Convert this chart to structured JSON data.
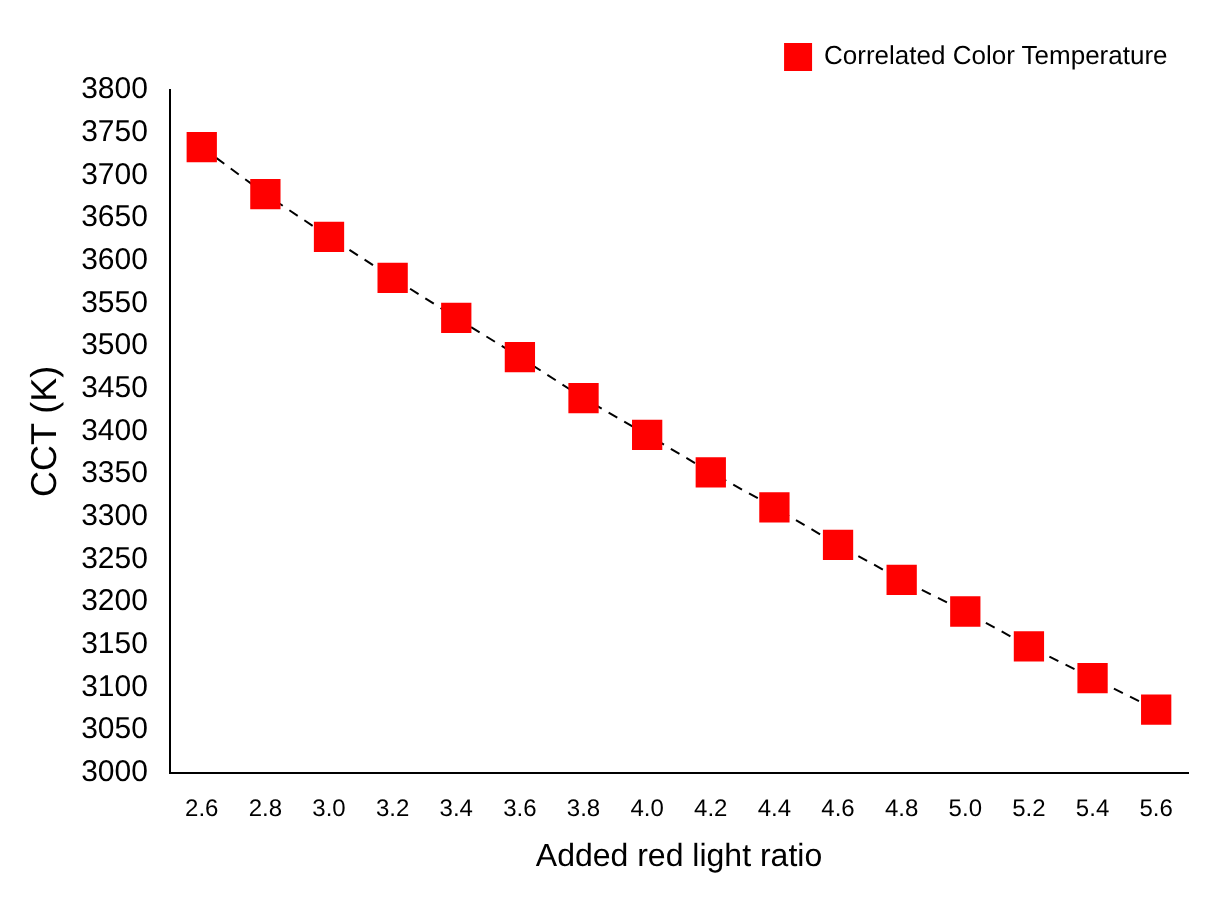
{
  "chart_data": {
    "type": "line",
    "xlabel": "Added red light ratio",
    "ylabel": "CCT (K)",
    "x": [
      2.6,
      2.8,
      3.0,
      3.2,
      3.4,
      3.6,
      3.8,
      4.0,
      4.2,
      4.4,
      4.6,
      4.8,
      5.0,
      5.2,
      5.4,
      5.6
    ],
    "series": [
      {
        "name": "Correlated Color Temperature",
        "color": "#ff0000",
        "values": [
          3733,
          3678,
          3628,
          3580,
          3533,
          3487,
          3439,
          3396,
          3352,
          3311,
          3267,
          3226,
          3189,
          3148,
          3111,
          3074
        ]
      }
    ],
    "xlim": [
      2.5,
      5.7
    ],
    "xticks": [
      {
        "value": 2.6,
        "label": "2.6"
      },
      {
        "value": 2.8,
        "label": "2.8"
      },
      {
        "value": 3.0,
        "label": "3.0"
      },
      {
        "value": 3.2,
        "label": "3.2"
      },
      {
        "value": 3.4,
        "label": "3.4"
      },
      {
        "value": 3.6,
        "label": "3.6"
      },
      {
        "value": 3.8,
        "label": "3.8"
      },
      {
        "value": 4.0,
        "label": "4.0"
      },
      {
        "value": 4.2,
        "label": "4.2"
      },
      {
        "value": 4.4,
        "label": "4.4"
      },
      {
        "value": 4.6,
        "label": "4.6"
      },
      {
        "value": 4.8,
        "label": "4.8"
      },
      {
        "value": 5.0,
        "label": "5.0"
      },
      {
        "value": 5.2,
        "label": "5.2"
      },
      {
        "value": 5.4,
        "label": "5.4"
      },
      {
        "value": 5.6,
        "label": "5.6"
      }
    ],
    "ylim": [
      3000,
      3800
    ],
    "yticks": [
      3000,
      3050,
      3100,
      3150,
      3200,
      3250,
      3300,
      3350,
      3400,
      3450,
      3500,
      3550,
      3600,
      3650,
      3700,
      3750,
      3800
    ],
    "grid": false,
    "legend": "top right",
    "marker": "square",
    "line_style": "dashed"
  }
}
